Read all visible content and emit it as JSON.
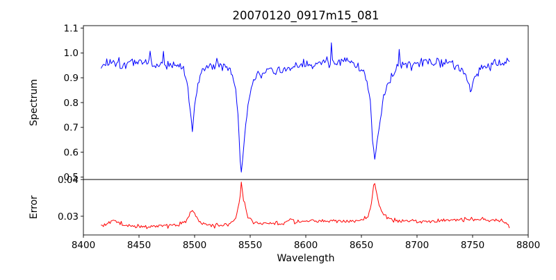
{
  "figure": {
    "background": "#ffffff",
    "axis_color": "#000000"
  },
  "chart_data": {
    "type": "line",
    "title": "20070120_0917m15_081",
    "xlabel": "Wavelength",
    "grid": false,
    "legend": "none",
    "xlim": [
      8400,
      8800
    ],
    "xticks": [
      8400,
      8450,
      8500,
      8550,
      8600,
      8650,
      8700,
      8750,
      8800
    ],
    "xtick_labels": [
      "8400",
      "8450",
      "8500",
      "8550",
      "8600",
      "8650",
      "8700",
      "8750",
      "8800"
    ],
    "x_range_of_data": [
      8416,
      8783
    ],
    "x_step": 1,
    "panels": [
      {
        "ylabel": "Spectrum",
        "ylim": [
          0.49,
          1.11
        ],
        "yticks": [
          0.5,
          0.6,
          0.7,
          0.8,
          0.9,
          1.0,
          1.1
        ],
        "ytick_labels": [
          "0.5",
          "0.6",
          "0.7",
          "0.8",
          "0.9",
          "1.0",
          "1.1"
        ],
        "series": {
          "name": "spectrum",
          "color": "#0000ff",
          "continuum_level": 0.97,
          "noise_amp": 0.021,
          "seed": 1337,
          "absorption_lines": [
            {
              "center": 8498,
              "min_value": 0.69
            },
            {
              "center": 8542,
              "min_value": 0.52
            },
            {
              "center": 8662,
              "min_value": 0.57
            },
            {
              "center": 8748,
              "min_value": 0.84
            }
          ],
          "anchors": [
            [
              8416,
              0.945
            ],
            [
              8420,
              0.958
            ],
            [
              8427,
              0.972
            ],
            [
              8435,
              0.955
            ],
            [
              8445,
              0.962
            ],
            [
              8452,
              0.968
            ],
            [
              8459,
              0.962
            ],
            [
              8460,
              1.005
            ],
            [
              8461,
              0.958
            ],
            [
              8465,
              0.952
            ],
            [
              8471,
              0.955
            ],
            [
              8472,
              1.0
            ],
            [
              8473,
              0.95
            ],
            [
              8478,
              0.958
            ],
            [
              8484,
              0.948
            ],
            [
              8490,
              0.932
            ],
            [
              8494,
              0.86
            ],
            [
              8496,
              0.76
            ],
            [
              8498,
              0.69
            ],
            [
              8500,
              0.78
            ],
            [
              8502,
              0.86
            ],
            [
              8506,
              0.925
            ],
            [
              8512,
              0.945
            ],
            [
              8520,
              0.958
            ],
            [
              8526,
              0.95
            ],
            [
              8532,
              0.935
            ],
            [
              8536,
              0.885
            ],
            [
              8539,
              0.76
            ],
            [
              8541,
              0.565
            ],
            [
              8542,
              0.52
            ],
            [
              8543,
              0.56
            ],
            [
              8545,
              0.665
            ],
            [
              8548,
              0.79
            ],
            [
              8552,
              0.875
            ],
            [
              8558,
              0.915
            ],
            [
              8565,
              0.935
            ],
            [
              8572,
              0.925
            ],
            [
              8580,
              0.932
            ],
            [
              8588,
              0.94
            ],
            [
              8596,
              0.95
            ],
            [
              8605,
              0.955
            ],
            [
              8614,
              0.962
            ],
            [
              8622,
              0.966
            ],
            [
              8623,
              1.045
            ],
            [
              8624,
              0.968
            ],
            [
              8632,
              0.963
            ],
            [
              8640,
              0.958
            ],
            [
              8647,
              0.948
            ],
            [
              8652,
              0.928
            ],
            [
              8655,
              0.885
            ],
            [
              8658,
              0.8
            ],
            [
              8660,
              0.65
            ],
            [
              8662,
              0.57
            ],
            [
              8664,
              0.635
            ],
            [
              8667,
              0.73
            ],
            [
              8670,
              0.82
            ],
            [
              8674,
              0.885
            ],
            [
              8680,
              0.925
            ],
            [
              8683,
              0.95
            ],
            [
              8684,
              1.02
            ],
            [
              8685,
              0.948
            ],
            [
              8692,
              0.95
            ],
            [
              8700,
              0.958
            ],
            [
              8710,
              0.963
            ],
            [
              8720,
              0.965
            ],
            [
              8728,
              0.958
            ],
            [
              8736,
              0.952
            ],
            [
              8742,
              0.938
            ],
            [
              8746,
              0.89
            ],
            [
              8748,
              0.845
            ],
            [
              8750,
              0.875
            ],
            [
              8753,
              0.915
            ],
            [
              8758,
              0.94
            ],
            [
              8765,
              0.952
            ],
            [
              8772,
              0.958
            ],
            [
              8778,
              0.962
            ],
            [
              8783,
              0.968
            ]
          ]
        }
      },
      {
        "ylabel": "Error",
        "ylim": [
          0.0249,
          0.04
        ],
        "yticks": [
          0.03,
          0.04
        ],
        "ytick_labels": [
          "0.03",
          "0.04"
        ],
        "series": {
          "name": "error",
          "color": "#ff0000",
          "baseline_level": 0.0275,
          "noise_amp": 0.00055,
          "seed": 2024,
          "error_peaks": [
            {
              "center": 8498,
              "max_value": 0.0315
            },
            {
              "center": 8542,
              "max_value": 0.0392
            },
            {
              "center": 8662,
              "max_value": 0.039
            }
          ],
          "anchors": [
            [
              8416,
              0.0272
            ],
            [
              8422,
              0.028
            ],
            [
              8427,
              0.0291
            ],
            [
              8430,
              0.0285
            ],
            [
              8436,
              0.0276
            ],
            [
              8445,
              0.0273
            ],
            [
              8455,
              0.0272
            ],
            [
              8465,
              0.0274
            ],
            [
              8475,
              0.0274
            ],
            [
              8485,
              0.0277
            ],
            [
              8492,
              0.0285
            ],
            [
              8496,
              0.0308
            ],
            [
              8498,
              0.0315
            ],
            [
              8500,
              0.0305
            ],
            [
              8504,
              0.0285
            ],
            [
              8510,
              0.0277
            ],
            [
              8518,
              0.0275
            ],
            [
              8526,
              0.0277
            ],
            [
              8532,
              0.028
            ],
            [
              8537,
              0.0292
            ],
            [
              8540,
              0.033
            ],
            [
              8542,
              0.0392
            ],
            [
              8544,
              0.0345
            ],
            [
              8547,
              0.0305
            ],
            [
              8551,
              0.0288
            ],
            [
              8557,
              0.028
            ],
            [
              8565,
              0.0279
            ],
            [
              8574,
              0.0281
            ],
            [
              8582,
              0.0282
            ],
            [
              8588,
              0.0296
            ],
            [
              8590,
              0.0285
            ],
            [
              8598,
              0.0287
            ],
            [
              8606,
              0.0288
            ],
            [
              8614,
              0.0286
            ],
            [
              8622,
              0.0287
            ],
            [
              8630,
              0.0286
            ],
            [
              8638,
              0.0285
            ],
            [
              8645,
              0.0287
            ],
            [
              8652,
              0.0293
            ],
            [
              8656,
              0.0302
            ],
            [
              8659,
              0.033
            ],
            [
              8661,
              0.0385
            ],
            [
              8662,
              0.039
            ],
            [
              8664,
              0.0358
            ],
            [
              8666,
              0.033
            ],
            [
              8669,
              0.0308
            ],
            [
              8673,
              0.0297
            ],
            [
              8678,
              0.0291
            ],
            [
              8685,
              0.0288
            ],
            [
              8694,
              0.0286
            ],
            [
              8704,
              0.0286
            ],
            [
              8714,
              0.0287
            ],
            [
              8724,
              0.0288
            ],
            [
              8734,
              0.0289
            ],
            [
              8742,
              0.0291
            ],
            [
              8748,
              0.0293
            ],
            [
              8754,
              0.029
            ],
            [
              8762,
              0.0292
            ],
            [
              8770,
              0.029
            ],
            [
              8776,
              0.0288
            ],
            [
              8780,
              0.0282
            ],
            [
              8783,
              0.027
            ]
          ]
        }
      }
    ]
  }
}
